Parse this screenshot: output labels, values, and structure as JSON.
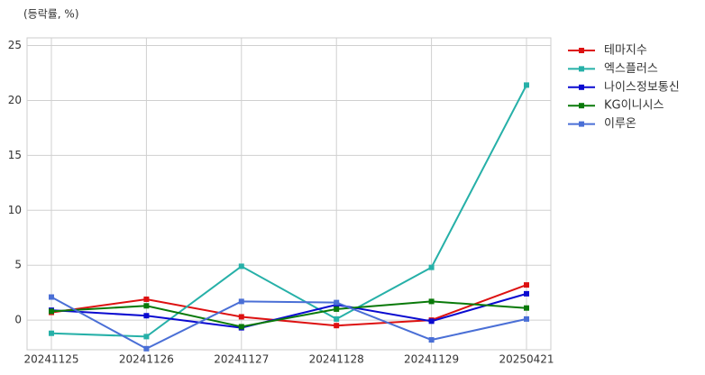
{
  "chart_data": {
    "type": "line",
    "y_label": "(등락률, %)",
    "categories": [
      "20241125",
      "20241126",
      "20241127",
      "20241128",
      "20241129",
      "20250421"
    ],
    "ylim": [
      -2.7,
      25.7
    ],
    "yticks": [
      0,
      5,
      10,
      15,
      20,
      25
    ],
    "grid": true,
    "legend": "right",
    "series": [
      {
        "name": "테마지수",
        "color": "#dd1111",
        "values": [
          0.7,
          1.9,
          0.3,
          -0.5,
          0.0,
          3.2
        ]
      },
      {
        "name": "엑스플러스",
        "color": "#26b0a8",
        "values": [
          -1.2,
          -1.5,
          4.9,
          0.1,
          4.8,
          21.4
        ]
      },
      {
        "name": "나이스정보통신",
        "color": "#0a0ad0",
        "values": [
          0.9,
          0.4,
          -0.7,
          1.4,
          -0.1,
          2.4
        ]
      },
      {
        "name": "KG이니시스",
        "color": "#0a7a0a",
        "values": [
          0.8,
          1.3,
          -0.6,
          1.0,
          1.7,
          1.1
        ]
      },
      {
        "name": "이루온",
        "color": "#4a6fd6",
        "values": [
          2.1,
          -2.6,
          1.7,
          1.6,
          -1.8,
          0.1
        ]
      }
    ]
  }
}
